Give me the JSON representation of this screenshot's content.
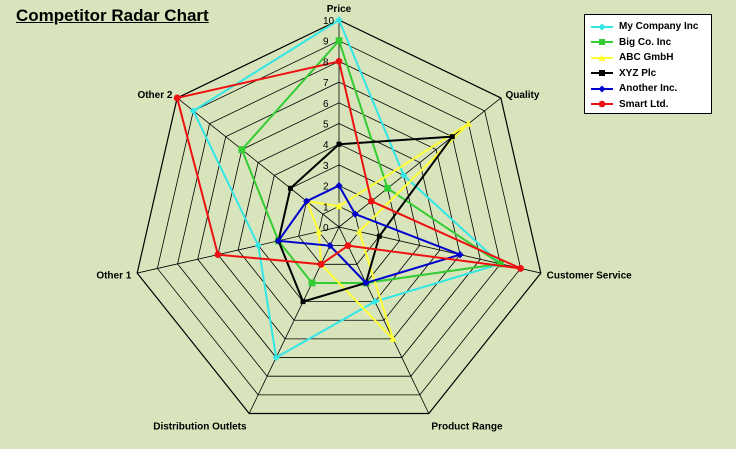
{
  "chart_data": {
    "type": "radar",
    "title": "Competitor Radar Chart",
    "categories": [
      "Price",
      "Quality",
      "Customer Service",
      "Product Range",
      "Distribution Outlets",
      "Other 1",
      "Other 2"
    ],
    "rlim": [
      0,
      10
    ],
    "ticks": [
      "0",
      "1",
      "2",
      "3",
      "4",
      "5",
      "6",
      "7",
      "8",
      "9",
      "10"
    ],
    "grid": true,
    "legend_position": "top-right",
    "series": [
      {
        "name": "My Company  Inc",
        "color": "#33e6e6",
        "values": [
          10,
          4,
          8,
          4,
          7,
          4,
          9
        ]
      },
      {
        "name": "Big Co. Inc",
        "color": "#33cc33",
        "values": [
          9,
          3,
          8,
          3,
          3,
          3,
          6
        ]
      },
      {
        "name": "ABC GmbH",
        "color": "#ffff33",
        "values": [
          1,
          8,
          1,
          6,
          2,
          1,
          2
        ]
      },
      {
        "name": "XYZ Plc",
        "color": "#000000",
        "values": [
          4,
          7,
          2,
          3,
          4,
          3,
          3
        ]
      },
      {
        "name": "Another Inc.",
        "color": "#0000cc",
        "values": [
          2,
          1,
          6,
          3,
          1,
          3,
          2
        ]
      },
      {
        "name": "Smart Ltd.",
        "color": "#ee1111",
        "values": [
          8,
          2,
          9,
          1,
          2,
          6,
          10
        ]
      }
    ]
  }
}
